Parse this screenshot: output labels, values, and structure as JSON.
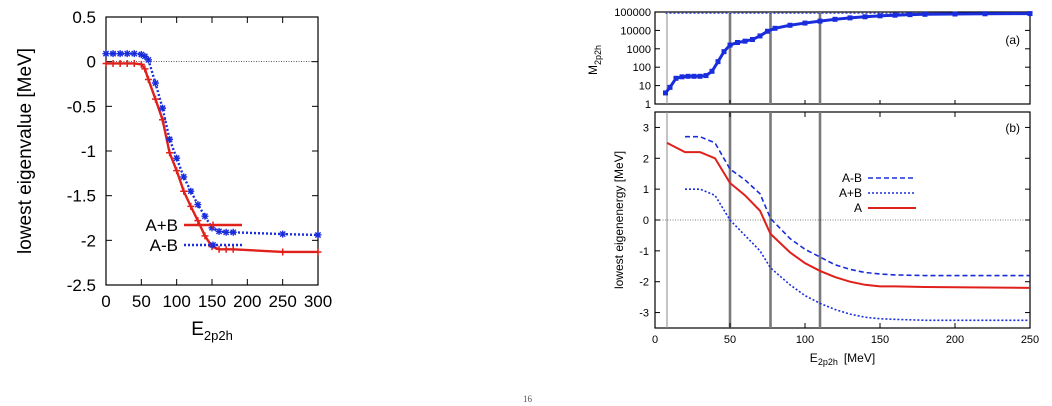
{
  "chart_data": [
    {
      "id": "left",
      "type": "line",
      "xlabel_main": "E",
      "xlabel_sub": "2p2h",
      "ylabel": "lowest eigenvalue [MeV]",
      "xlim": [
        0,
        300
      ],
      "ylim": [
        -2.5,
        0.5
      ],
      "xticks": [
        0,
        50,
        100,
        150,
        200,
        250,
        300
      ],
      "yticks": [
        0.5,
        0,
        -0.5,
        -1,
        -1.5,
        -2,
        -2.5
      ],
      "ytick_labels": [
        "0.5",
        "0",
        "-0.5",
        "-1",
        "-1.5",
        "-2",
        "-2.5"
      ],
      "zero_line": true,
      "legend_position": "lower-left",
      "series": [
        {
          "name": "A+B",
          "color": "#e0201b",
          "style": "solid",
          "marker": "plus",
          "x": [
            0,
            10,
            20,
            30,
            40,
            50,
            55,
            60,
            70,
            80,
            90,
            100,
            110,
            120,
            130,
            140,
            150,
            160,
            170,
            180,
            250,
            300
          ],
          "y": [
            -0.02,
            -0.02,
            -0.02,
            -0.02,
            -0.02,
            -0.03,
            -0.08,
            -0.2,
            -0.42,
            -0.65,
            -1.02,
            -1.22,
            -1.45,
            -1.62,
            -1.78,
            -1.95,
            -2.07,
            -2.1,
            -2.1,
            -2.1,
            -2.13,
            -2.13
          ]
        },
        {
          "name": "A-B",
          "color": "#1a2ddc",
          "style": "dotted",
          "marker": "asterisk",
          "x": [
            0,
            10,
            20,
            30,
            40,
            50,
            55,
            60,
            70,
            80,
            90,
            100,
            110,
            120,
            130,
            140,
            150,
            160,
            170,
            180,
            250,
            300
          ],
          "y": [
            0.09,
            0.09,
            0.09,
            0.09,
            0.09,
            0.08,
            0.06,
            0.02,
            -0.24,
            -0.52,
            -0.87,
            -1.08,
            -1.29,
            -1.45,
            -1.6,
            -1.73,
            -1.86,
            -1.9,
            -1.91,
            -1.91,
            -1.93,
            -1.94
          ]
        }
      ]
    },
    {
      "id": "right-top",
      "type": "line",
      "panel_label": "(a)",
      "ylabel_main": "M",
      "ylabel_sub": "2p2h",
      "xlim": [
        0,
        250
      ],
      "ylim_log10": [
        0,
        5
      ],
      "yscale": "log",
      "yticks": [
        1,
        10,
        100,
        1000,
        10000,
        100000
      ],
      "ytick_labels": [
        "1",
        "10",
        "100",
        "1000",
        "10000",
        "100000"
      ],
      "vertical_lines_x": [
        8,
        50,
        77,
        110
      ],
      "series": [
        {
          "name": "",
          "color": "#1a2ddc",
          "style": "solid",
          "marker": "square",
          "x": [
            7,
            10,
            14,
            18,
            22,
            26,
            30,
            34,
            38,
            42,
            46,
            50,
            55,
            60,
            65,
            70,
            75,
            80,
            90,
            100,
            110,
            120,
            130,
            140,
            150,
            160,
            170,
            180,
            200,
            220,
            250
          ],
          "y": [
            4,
            8,
            25,
            30,
            32,
            32,
            32,
            35,
            60,
            200,
            700,
            1600,
            2200,
            2600,
            3200,
            5000,
            9000,
            13000,
            19000,
            25000,
            32000,
            40000,
            48000,
            55000,
            62000,
            67000,
            72000,
            75000,
            78000,
            80000,
            82000
          ]
        },
        {
          "name": "",
          "color": "#1a2ddc",
          "style": "dotted",
          "marker": "none",
          "x": [
            7,
            250
          ],
          "y": [
            85000,
            85000
          ]
        }
      ]
    },
    {
      "id": "right-bottom",
      "type": "line",
      "panel_label": "(b)",
      "xlabel_main": "E",
      "xlabel_sub": "2p2h",
      "xlabel_unit": "[MeV]",
      "ylabel": "lowest eigenenergy [MeV]",
      "xlim": [
        0,
        250
      ],
      "ylim": [
        -3.5,
        3.5
      ],
      "xticks": [
        0,
        50,
        100,
        150,
        200,
        250
      ],
      "yticks": [
        3,
        2,
        1,
        0,
        -1,
        -2,
        -3
      ],
      "ytick_labels": [
        "3",
        "2",
        "1",
        "0",
        "-1",
        "-2",
        "-3"
      ],
      "vertical_lines_x": [
        8,
        50,
        77,
        110
      ],
      "zero_line": true,
      "legend_position": "center-right",
      "series": [
        {
          "name": "A-B",
          "color": "#1a2ddc",
          "style": "dashed",
          "x": [
            20,
            30,
            40,
            50,
            60,
            70,
            77,
            90,
            100,
            110,
            120,
            130,
            140,
            150,
            160,
            180,
            200,
            250
          ],
          "y": [
            2.7,
            2.7,
            2.5,
            1.65,
            1.3,
            0.85,
            0.05,
            -0.6,
            -0.95,
            -1.2,
            -1.45,
            -1.6,
            -1.7,
            -1.75,
            -1.78,
            -1.8,
            -1.8,
            -1.8
          ]
        },
        {
          "name": "A+B",
          "color": "#1a2ddc",
          "style": "dotted",
          "x": [
            20,
            30,
            40,
            50,
            60,
            70,
            77,
            90,
            100,
            110,
            120,
            130,
            140,
            150,
            160,
            180,
            200,
            250
          ],
          "y": [
            1.0,
            1.0,
            0.8,
            0.0,
            -0.5,
            -1.0,
            -1.55,
            -2.1,
            -2.45,
            -2.7,
            -2.9,
            -3.05,
            -3.15,
            -3.2,
            -3.22,
            -3.25,
            -3.25,
            -3.25
          ]
        },
        {
          "name": "A",
          "color": "#e0201b",
          "style": "solid",
          "x": [
            8,
            20,
            30,
            40,
            50,
            60,
            70,
            77,
            90,
            100,
            110,
            120,
            130,
            140,
            150,
            160,
            180,
            200,
            250
          ],
          "y": [
            2.5,
            2.2,
            2.2,
            2.0,
            1.2,
            0.8,
            0.3,
            -0.45,
            -1.05,
            -1.4,
            -1.65,
            -1.85,
            -2.0,
            -2.1,
            -2.15,
            -2.15,
            -2.17,
            -2.18,
            -2.2
          ]
        }
      ]
    }
  ],
  "footer": {
    "page_marker": "16"
  }
}
